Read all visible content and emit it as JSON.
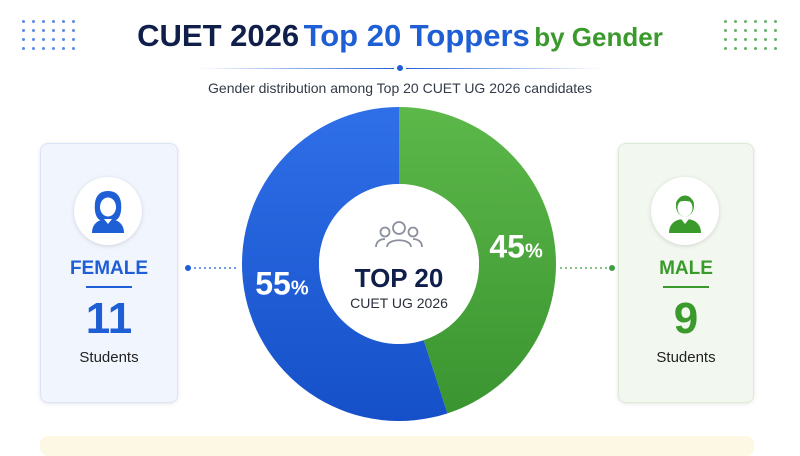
{
  "header": {
    "title_part1": "CUET 2026",
    "title_part2": "Top 20 Toppers",
    "title_part3": "by Gender",
    "subtitle": "Gender distribution among Top 20 CUET UG 2026 candidates"
  },
  "cards": {
    "female": {
      "label": "FEMALE",
      "count": "11",
      "unit": "Students",
      "icon": "female-user-icon"
    },
    "male": {
      "label": "MALE",
      "count": "9",
      "unit": "Students",
      "icon": "male-user-icon"
    }
  },
  "center": {
    "icon": "group-icon",
    "title": "TOP 20",
    "subtitle": "CUET UG 2026"
  },
  "colors": {
    "female": "#1f5fd6",
    "male": "#3fa043",
    "title_dark": "#0f1f4a"
  },
  "chart_data": {
    "type": "pie",
    "title": "CUET 2026 Top 20 Toppers by Gender",
    "categories": [
      "FEMALE",
      "MALE"
    ],
    "values": [
      55,
      45
    ],
    "counts": [
      11,
      9
    ],
    "data_labels": [
      "55%",
      "45%"
    ],
    "legend": "none"
  }
}
